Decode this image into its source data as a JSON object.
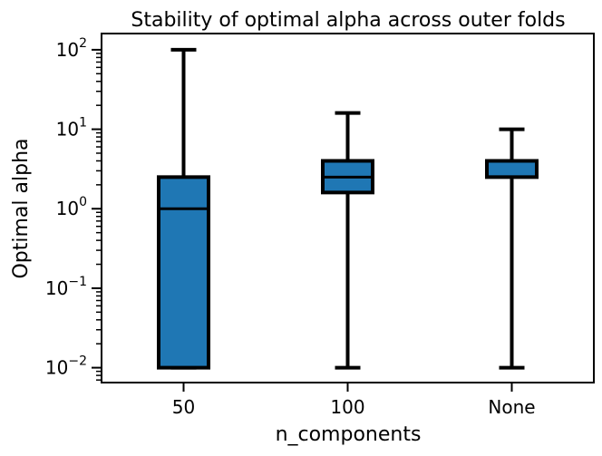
{
  "chart_data": {
    "type": "box",
    "title": "Stability of optimal alpha across outer folds",
    "xlabel": "n_components",
    "ylabel": "Optimal alpha",
    "yscale": "log",
    "ylim": [
      0.0065,
      160
    ],
    "yticks": [
      {
        "value": 0.01,
        "base": "10",
        "exp": "−2"
      },
      {
        "value": 0.1,
        "base": "10",
        "exp": "−1"
      },
      {
        "value": 1,
        "base": "10",
        "exp": "0"
      },
      {
        "value": 10,
        "base": "10",
        "exp": "1"
      },
      {
        "value": 100,
        "base": "10",
        "exp": "2"
      }
    ],
    "categories": [
      "50",
      "100",
      "None"
    ],
    "boxes": [
      {
        "category": "50",
        "whisker_low": 0.01,
        "q1": 0.01,
        "median": 1.0,
        "q3": 2.5,
        "whisker_high": 100
      },
      {
        "category": "100",
        "whisker_low": 0.01,
        "q1": 1.6,
        "median": 2.5,
        "q3": 4.0,
        "whisker_high": 16
      },
      {
        "category": "None",
        "whisker_low": 0.01,
        "q1": 2.5,
        "median": 2.5,
        "q3": 4.0,
        "whisker_high": 10
      }
    ],
    "box_color": "#1f77b4",
    "line_color": "#000000",
    "grid": false
  }
}
